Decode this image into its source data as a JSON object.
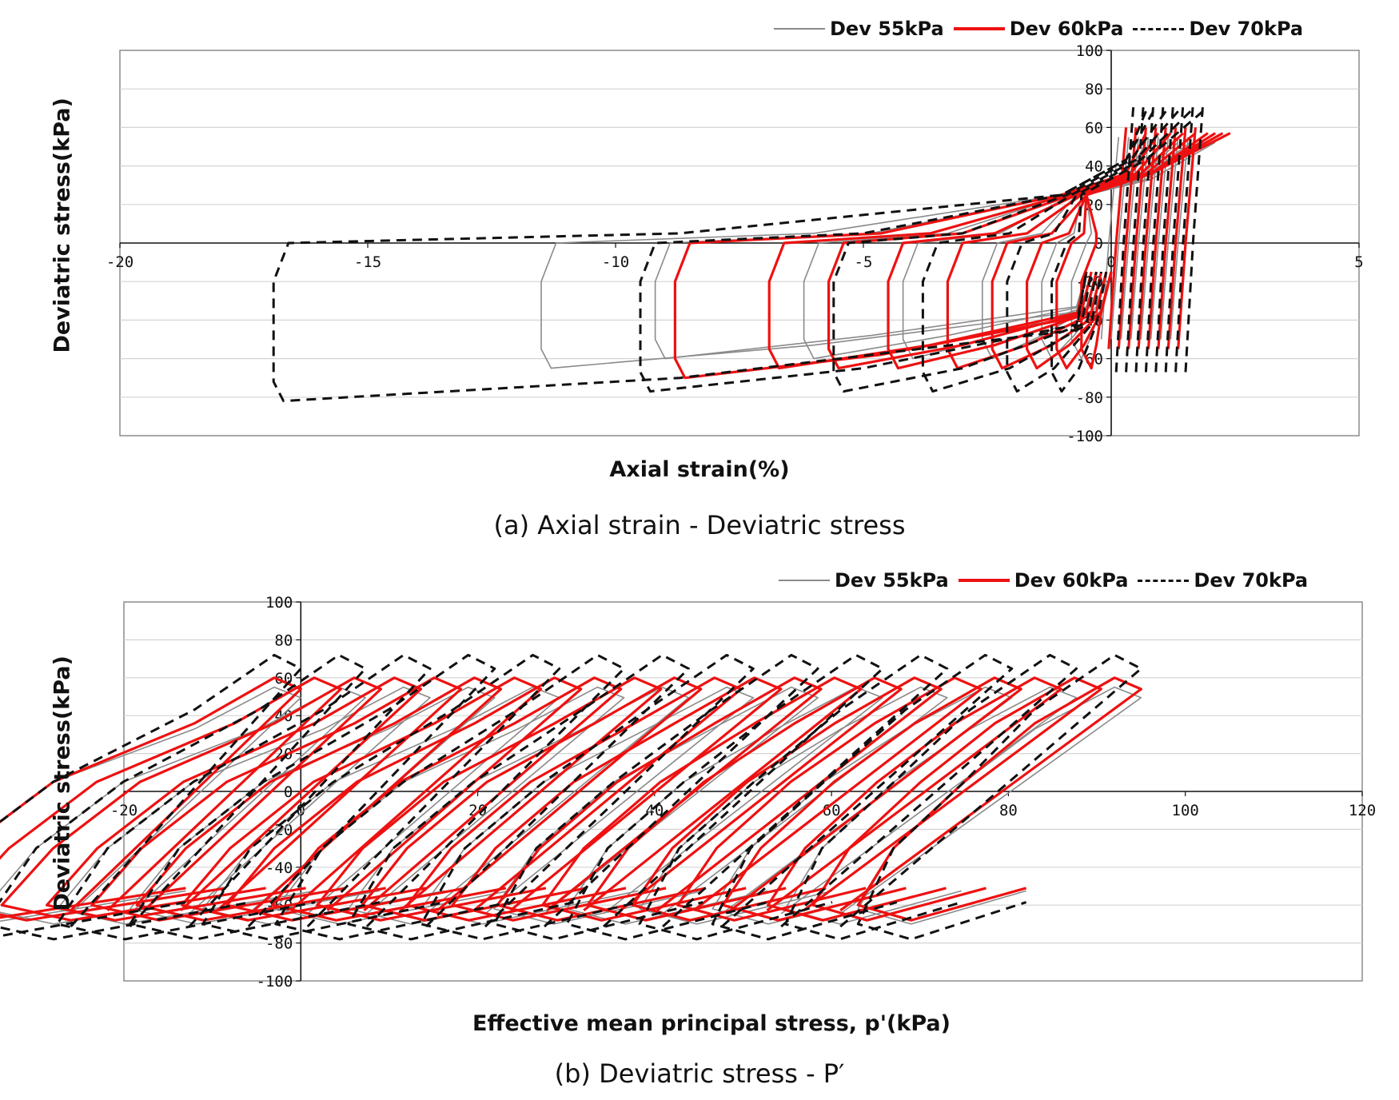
{
  "colors": {
    "dev55": "#8a8a8a",
    "dev60": "#ee1111",
    "dev70": "#111111",
    "grid": "#d4d4d4",
    "frame": "#8c8c8c"
  },
  "legend": [
    {
      "key": "dev55",
      "label": "Dev 55kPa",
      "style": "solid-thin"
    },
    {
      "key": "dev60",
      "label": "Dev 60kPa",
      "style": "solid-thick"
    },
    {
      "key": "dev70",
      "label": "Dev 70kPa",
      "style": "dashed"
    }
  ],
  "chart_data": [
    {
      "type": "line",
      "caption": "(a) Axial strain  -  Deviatric stress",
      "xlabel": "Axial strain(%)",
      "ylabel": "Deviatric stress(kPa)",
      "xlim": [
        -20,
        5
      ],
      "ylim": [
        -100,
        100
      ],
      "xticks": [
        -20,
        -15,
        -10,
        -5,
        0,
        5
      ],
      "yticks": [
        -100,
        -80,
        -60,
        -40,
        -20,
        0,
        20,
        40,
        60,
        80,
        100
      ],
      "grid": true,
      "legend_position": "top-right",
      "series": [
        {
          "name": "Dev 55kPa",
          "loop_x": [
            [
              -0.5,
              -11.5
            ],
            [
              -0.5,
              -9.2
            ],
            [
              -0.4,
              -6.2
            ],
            [
              -0.3,
              -4.2
            ],
            [
              -0.2,
              -2.6
            ],
            [
              -0.1,
              -1.4
            ],
            [
              0,
              -0.8
            ]
          ],
          "loop_top": [
            [
              30,
              45
            ],
            [
              30,
              40
            ],
            [
              25,
              38
            ]
          ],
          "peak": 55
        },
        {
          "name": "Dev 60kPa",
          "loop_x": [
            [
              -0.5,
              -8.8
            ],
            [
              -0.4,
              -6.9
            ],
            [
              -0.3,
              -5.7
            ],
            [
              -0.2,
              -4.5
            ],
            [
              -0.1,
              -3.3
            ],
            [
              0,
              -2.4
            ],
            [
              0,
              -1.7
            ],
            [
              0,
              -1.1
            ],
            [
              0,
              -0.6
            ]
          ],
          "peak": 60
        },
        {
          "name": "Dev 70kPa",
          "loop_x": [
            [
              -0.5,
              -16.9
            ],
            [
              -0.5,
              -9.5
            ],
            [
              -0.4,
              -5.6
            ],
            [
              -0.3,
              -3.8
            ],
            [
              -0.2,
              -2.1
            ],
            [
              -0.1,
              -1.2
            ]
          ],
          "peak": 72
        }
      ]
    },
    {
      "type": "line",
      "caption": "(b) Deviatric stress  -  P′",
      "xlabel": "Effective mean principal stress, p'(kPa)",
      "ylabel": "Deviatric stress(kPa)",
      "xlim": [
        -20,
        120
      ],
      "ylim": [
        -100,
        100
      ],
      "xticks": [
        -20,
        0,
        20,
        40,
        60,
        80,
        100,
        120
      ],
      "yticks": [
        -100,
        -80,
        -60,
        -40,
        -20,
        0,
        20,
        40,
        60,
        80,
        100
      ],
      "grid": true,
      "legend_position": "top-right",
      "series": [
        {
          "name": "Dev 55kPa",
          "start_p": 97,
          "peak": 55,
          "min": -70
        },
        {
          "name": "Dev 60kPa",
          "start_p": 97,
          "peak": 60,
          "min": -68
        },
        {
          "name": "Dev 70kPa",
          "start_p": 97,
          "peak": 72,
          "min": -78
        }
      ]
    }
  ]
}
